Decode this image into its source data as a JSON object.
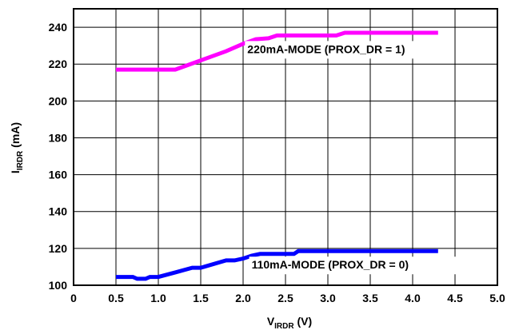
{
  "chart_data": {
    "type": "line",
    "xlabel": {
      "main": "V",
      "sub": "IRDR",
      "unit": " (V)"
    },
    "ylabel": {
      "main": "I",
      "sub": "IRDR",
      "unit": " (mA)"
    },
    "xlim": [
      0,
      5
    ],
    "ylim": [
      100,
      250
    ],
    "x_ticks": [
      0,
      0.5,
      1.0,
      1.5,
      2.0,
      2.5,
      3.0,
      3.5,
      4.0,
      4.5,
      5.0
    ],
    "x_tick_labels": [
      "0",
      "0.5",
      "1.0",
      "1.5",
      "2.0",
      "2.5",
      "3.0",
      "3.5",
      "4.0",
      "4.5",
      "5.0"
    ],
    "y_ticks": [
      100,
      120,
      140,
      160,
      180,
      200,
      220,
      240
    ],
    "y_tick_labels": [
      "100",
      "120",
      "140",
      "160",
      "180",
      "200",
      "220",
      "240"
    ],
    "grid": true,
    "series": [
      {
        "color": "#ff00ff",
        "x": [
          0.5,
          1.2,
          1.5,
          1.8,
          2.0,
          2.15,
          2.3,
          2.4,
          3.1,
          3.2,
          4.3
        ],
        "y": [
          217,
          217,
          222,
          227,
          231,
          233.5,
          234,
          235.5,
          235.5,
          237,
          237
        ]
      },
      {
        "color": "#0000ff",
        "x": [
          0.5,
          0.7,
          0.75,
          0.85,
          0.9,
          1.0,
          1.2,
          1.4,
          1.5,
          1.8,
          1.9,
          2.0,
          2.1,
          2.2,
          2.6,
          2.65,
          4.3
        ],
        "y": [
          104.5,
          104.5,
          103.5,
          103.5,
          104.5,
          104.5,
          107,
          109.5,
          109.5,
          113.5,
          113.5,
          114.5,
          116,
          117,
          117,
          118.5,
          118.5
        ]
      }
    ],
    "annotations": [
      {
        "text": "220mA-MODE (PROX_DR = 1)",
        "x": 2.05,
        "y": 226
      },
      {
        "text": "110mA-MODE (PROX_DR = 0)",
        "x": 2.1,
        "y": 109
      }
    ]
  }
}
